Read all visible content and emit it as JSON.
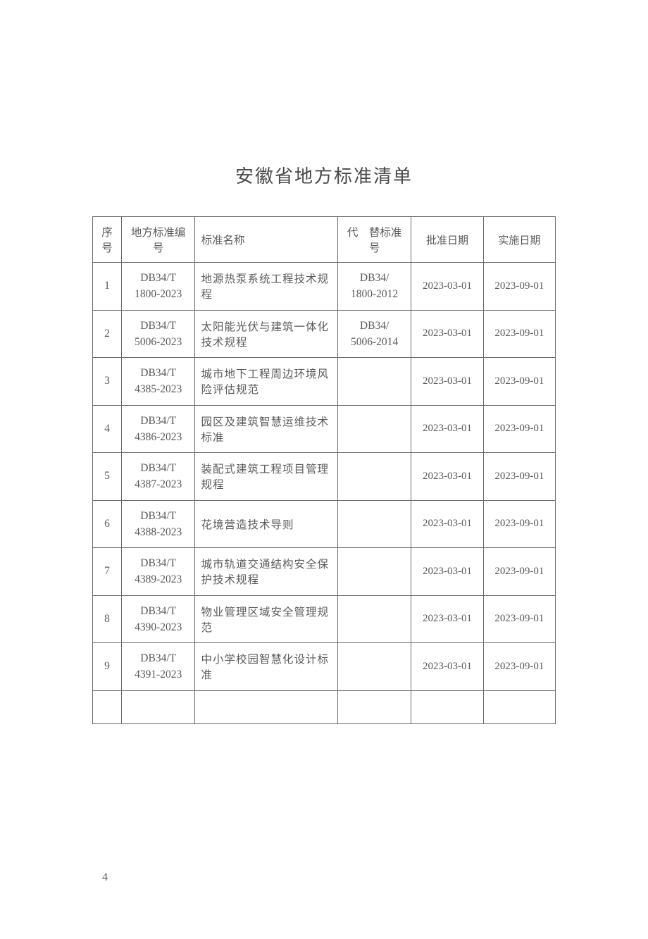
{
  "title": "安徽省地方标准清单",
  "page_number": "4",
  "table": {
    "headers": {
      "seq": "序号",
      "code": "地方标准编　号",
      "name": "标准名称",
      "replace": "代　替标准号",
      "approve_date": "批准日期",
      "effective_date": "实施日期"
    },
    "rows": [
      {
        "seq": "1",
        "code_line1": "DB34/T",
        "code_line2": "1800-2023",
        "name": "地源热泵系统工程技术规程",
        "replace_line1": "DB34/",
        "replace_line2": "1800-2012",
        "approve_date": "2023-03-01",
        "effective_date": "2023-09-01"
      },
      {
        "seq": "2",
        "code_line1": "DB34/T",
        "code_line2": "5006-2023",
        "name": "太阳能光伏与建筑一体化技术规程",
        "replace_line1": "DB34/",
        "replace_line2": "5006-2014",
        "approve_date": "2023-03-01",
        "effective_date": "2023-09-01"
      },
      {
        "seq": "3",
        "code_line1": "DB34/T",
        "code_line2": "4385-2023",
        "name": "城市地下工程周边环境风险评估规范",
        "replace_line1": "",
        "replace_line2": "",
        "approve_date": "2023-03-01",
        "effective_date": "2023-09-01"
      },
      {
        "seq": "4",
        "code_line1": "DB34/T",
        "code_line2": "4386-2023",
        "name": "园区及建筑智慧运维技术标准",
        "replace_line1": "",
        "replace_line2": "",
        "approve_date": "2023-03-01",
        "effective_date": "2023-09-01"
      },
      {
        "seq": "5",
        "code_line1": "DB34/T",
        "code_line2": "4387-2023",
        "name": "装配式建筑工程项目管理规程",
        "replace_line1": "",
        "replace_line2": "",
        "approve_date": "2023-03-01",
        "effective_date": "2023-09-01"
      },
      {
        "seq": "6",
        "code_line1": "DB34/T",
        "code_line2": "4388-2023",
        "name": "花境营造技术导则",
        "replace_line1": "",
        "replace_line2": "",
        "approve_date": "2023-03-01",
        "effective_date": "2023-09-01"
      },
      {
        "seq": "7",
        "code_line1": "DB34/T",
        "code_line2": "4389-2023",
        "name": "城市轨道交通结构安全保护技术规程",
        "replace_line1": "",
        "replace_line2": "",
        "approve_date": "2023-03-01",
        "effective_date": "2023-09-01"
      },
      {
        "seq": "8",
        "code_line1": "DB34/T",
        "code_line2": "4390-2023",
        "name": "物业管理区域安全管理规范",
        "replace_line1": "",
        "replace_line2": "",
        "approve_date": "2023-03-01",
        "effective_date": "2023-09-01"
      },
      {
        "seq": "9",
        "code_line1": "DB34/T",
        "code_line2": "4391-2023",
        "name": "中小学校园智慧化设计标准",
        "replace_line1": "",
        "replace_line2": "",
        "approve_date": "2023-03-01",
        "effective_date": "2023-09-01"
      }
    ]
  }
}
